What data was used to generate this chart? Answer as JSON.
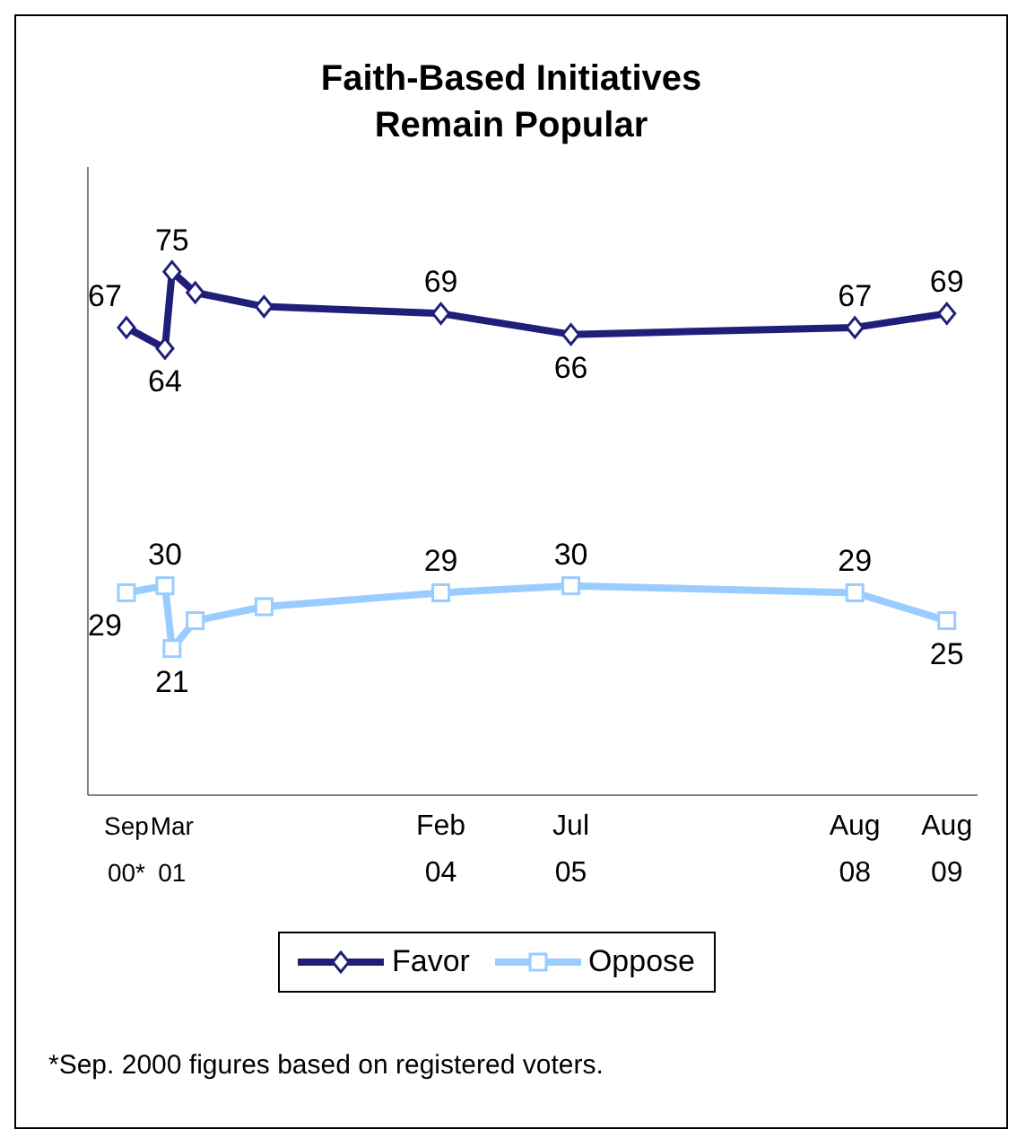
{
  "chart_data": {
    "type": "line",
    "title": "Faith-Based Initiatives Remain Popular",
    "x": [
      "2000-09",
      "2001-02",
      "2001-03",
      "2001-06",
      "2002-03",
      "2004-02",
      "2005-07",
      "2008-08",
      "2009-08"
    ],
    "series": [
      {
        "name": "Favor",
        "color": "#1f1f7a",
        "marker": "diamond",
        "values": [
          67,
          64,
          75,
          72,
          70,
          69,
          66,
          67,
          69
        ],
        "value_labels": [
          "67",
          "64",
          "75",
          null,
          null,
          "69",
          "66",
          "67",
          "69"
        ]
      },
      {
        "name": "Oppose",
        "color": "#99ccff",
        "marker": "square",
        "values": [
          29,
          30,
          21,
          25,
          27,
          29,
          30,
          29,
          25
        ],
        "value_labels": [
          "29",
          "30",
          "21",
          null,
          null,
          "29",
          "30",
          "29",
          "25"
        ]
      }
    ],
    "xlim": [
      "2000-04",
      "2009-12"
    ],
    "xticks": [
      {
        "value": "2000-09",
        "label": "Sep 00*"
      },
      {
        "value": "2001-03",
        "label": "Mar 01"
      },
      {
        "value": "2004-02",
        "label": "Feb 04"
      },
      {
        "value": "2005-07",
        "label": "Jul 05"
      },
      {
        "value": "2008-08",
        "label": "Aug 08"
      },
      {
        "value": "2009-08",
        "label": "Aug 09"
      }
    ],
    "ylim": [
      0,
      90
    ],
    "tick_labels": "x",
    "grid": false,
    "legend": "bottom",
    "annotations": [
      "*Sep. 2000 figures based on registered voters."
    ]
  }
}
